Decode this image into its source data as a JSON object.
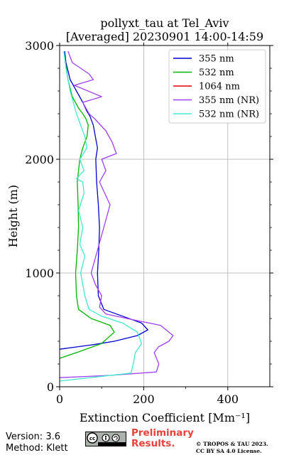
{
  "chart_data": {
    "type": "line",
    "title": "pollyxt_tau at Tel_Aviv",
    "subtitle": "[Averaged] 20230901 14:00-14:59",
    "xlabel": "Extinction Coefficient [Mm⁻¹]",
    "ylabel": "Height (m)",
    "xlim": [
      0,
      500
    ],
    "ylim": [
      0,
      3000
    ],
    "xticks": [
      0,
      200,
      400
    ],
    "yticks": [
      0,
      1000,
      2000,
      3000
    ],
    "grid": true,
    "legend_position": "top-right",
    "colors": {
      "355": "#0000d0",
      "532": "#00b400",
      "1064": "#e00000",
      "355nr": "#a040f0",
      "532nr": "#40e8d0"
    },
    "series": [
      {
        "name": "355 nm",
        "color": "#0000d0",
        "x": [
          0,
          40,
          80,
          130,
          185,
          210,
          195,
          150,
          105,
          92,
          90,
          93,
          95,
          92,
          88,
          86,
          90,
          85,
          80,
          72,
          65,
          55,
          40,
          25,
          15,
          12
        ],
        "y": [
          330,
          350,
          370,
          400,
          450,
          500,
          560,
          620,
          680,
          800,
          1000,
          1200,
          1400,
          1600,
          1800,
          2000,
          2100,
          2200,
          2300,
          2380,
          2420,
          2500,
          2600,
          2700,
          2850,
          2950
        ]
      },
      {
        "name": "532 nm",
        "color": "#00b400",
        "x": [
          0,
          40,
          100,
          130,
          120,
          75,
          45,
          40,
          38,
          42,
          45,
          44,
          42,
          45,
          48,
          55,
          65,
          68,
          62,
          55,
          45,
          30,
          20,
          12
        ],
        "y": [
          250,
          300,
          380,
          480,
          540,
          600,
          680,
          800,
          1000,
          1200,
          1400,
          1600,
          1800,
          1900,
          2000,
          2100,
          2200,
          2300,
          2360,
          2400,
          2450,
          2550,
          2700,
          2900
        ]
      },
      {
        "name": "1064 nm",
        "color": "#e00000",
        "x": [],
        "y": []
      },
      {
        "name": "355 nm (NR)",
        "color": "#a040f0",
        "x": [
          0,
          120,
          230,
          236,
          225,
          235,
          260,
          270,
          240,
          160,
          110,
          95,
          100,
          85,
          75,
          90,
          105,
          120,
          95,
          110,
          100,
          135,
          125,
          110,
          85,
          70,
          55,
          100,
          35,
          80,
          70,
          30,
          20
        ],
        "y": [
          80,
          100,
          130,
          200,
          300,
          350,
          400,
          450,
          540,
          600,
          640,
          700,
          800,
          900,
          1000,
          1200,
          1400,
          1600,
          1800,
          1900,
          2000,
          2050,
          2150,
          2250,
          2350,
          2400,
          2500,
          2550,
          2650,
          2700,
          2750,
          2850,
          2950
        ]
      },
      {
        "name": "532 nm (NR)",
        "color": "#40e8d0",
        "x": [
          0,
          170,
          175,
          180,
          195,
          185,
          150,
          100,
          70,
          60,
          50,
          60,
          48,
          55,
          45,
          58,
          55,
          40,
          58,
          48,
          65,
          60,
          50,
          40,
          25,
          15,
          10
        ],
        "y": [
          50,
          120,
          200,
          300,
          380,
          480,
          560,
          620,
          680,
          800,
          1000,
          1150,
          1250,
          1400,
          1550,
          1700,
          1800,
          1830,
          1900,
          2000,
          2100,
          2200,
          2300,
          2400,
          2600,
          2800,
          2950
        ]
      }
    ]
  },
  "footer": {
    "version": "Version: 3.6",
    "method": "Method: Klett",
    "prelim_line1": "Preliminary",
    "prelim_line2": "Results.",
    "copyright_line1": "© TROPOS & TAU 2023.",
    "copyright_line2": "CC BY SA 4.0 License."
  }
}
